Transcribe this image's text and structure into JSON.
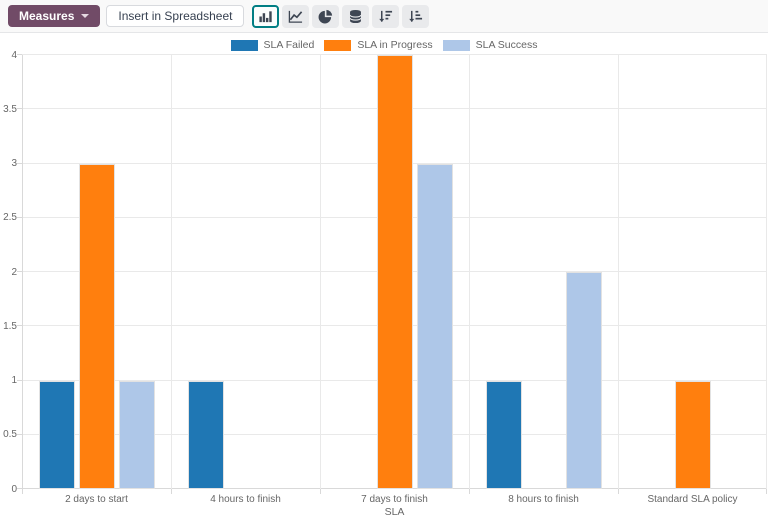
{
  "toolbar": {
    "measures_label": "Measures",
    "insert_label": "Insert in Spreadsheet",
    "icons": [
      "bar-chart",
      "line-chart",
      "pie-chart",
      "stacked",
      "sort-descending",
      "sort-ascending"
    ],
    "active_icon": "bar-chart",
    "measures_bg": "#714B67",
    "active_border_color": "#017e84"
  },
  "chart_data": {
    "type": "bar",
    "title": "",
    "xlabel": "SLA",
    "ylabel": "",
    "ylim": [
      0,
      4
    ],
    "ytick_step": 0.5,
    "grid": true,
    "legend_position": "top",
    "categories": [
      "2 days to start",
      "4 hours to finish",
      "7 days to finish",
      "8 hours to finish",
      "Standard SLA policy"
    ],
    "series": [
      {
        "name": "SLA Failed",
        "color": "#1f77b4",
        "values": [
          1,
          1,
          0,
          1,
          0
        ]
      },
      {
        "name": "SLA in Progress",
        "color": "#ff7f0e",
        "values": [
          3,
          0,
          4,
          0,
          1
        ]
      },
      {
        "name": "SLA Success",
        "color": "#aec7e8",
        "values": [
          1,
          0,
          3,
          2,
          0
        ]
      }
    ]
  }
}
